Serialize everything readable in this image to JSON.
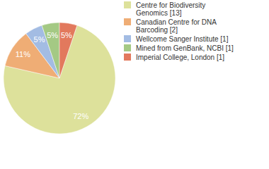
{
  "chart_data": {
    "type": "pie",
    "categories": [
      "Centre for Biodiversity Genomics [13]",
      "Canadian Centre for DNA Barcoding [2]",
      "Wellcome Sanger Institute [1]",
      "Mined from GenBank, NCBI [1]",
      "Imperial College, London [1]"
    ],
    "values": [
      72,
      11,
      5,
      5,
      5
    ],
    "value_labels": [
      "72%",
      "11%",
      "5%",
      "5%",
      "5%"
    ],
    "colors": [
      "#dde19b",
      "#efad75",
      "#a3bce3",
      "#a4c984",
      "#e2795d"
    ],
    "data_labels": true,
    "legend": "upper right"
  }
}
